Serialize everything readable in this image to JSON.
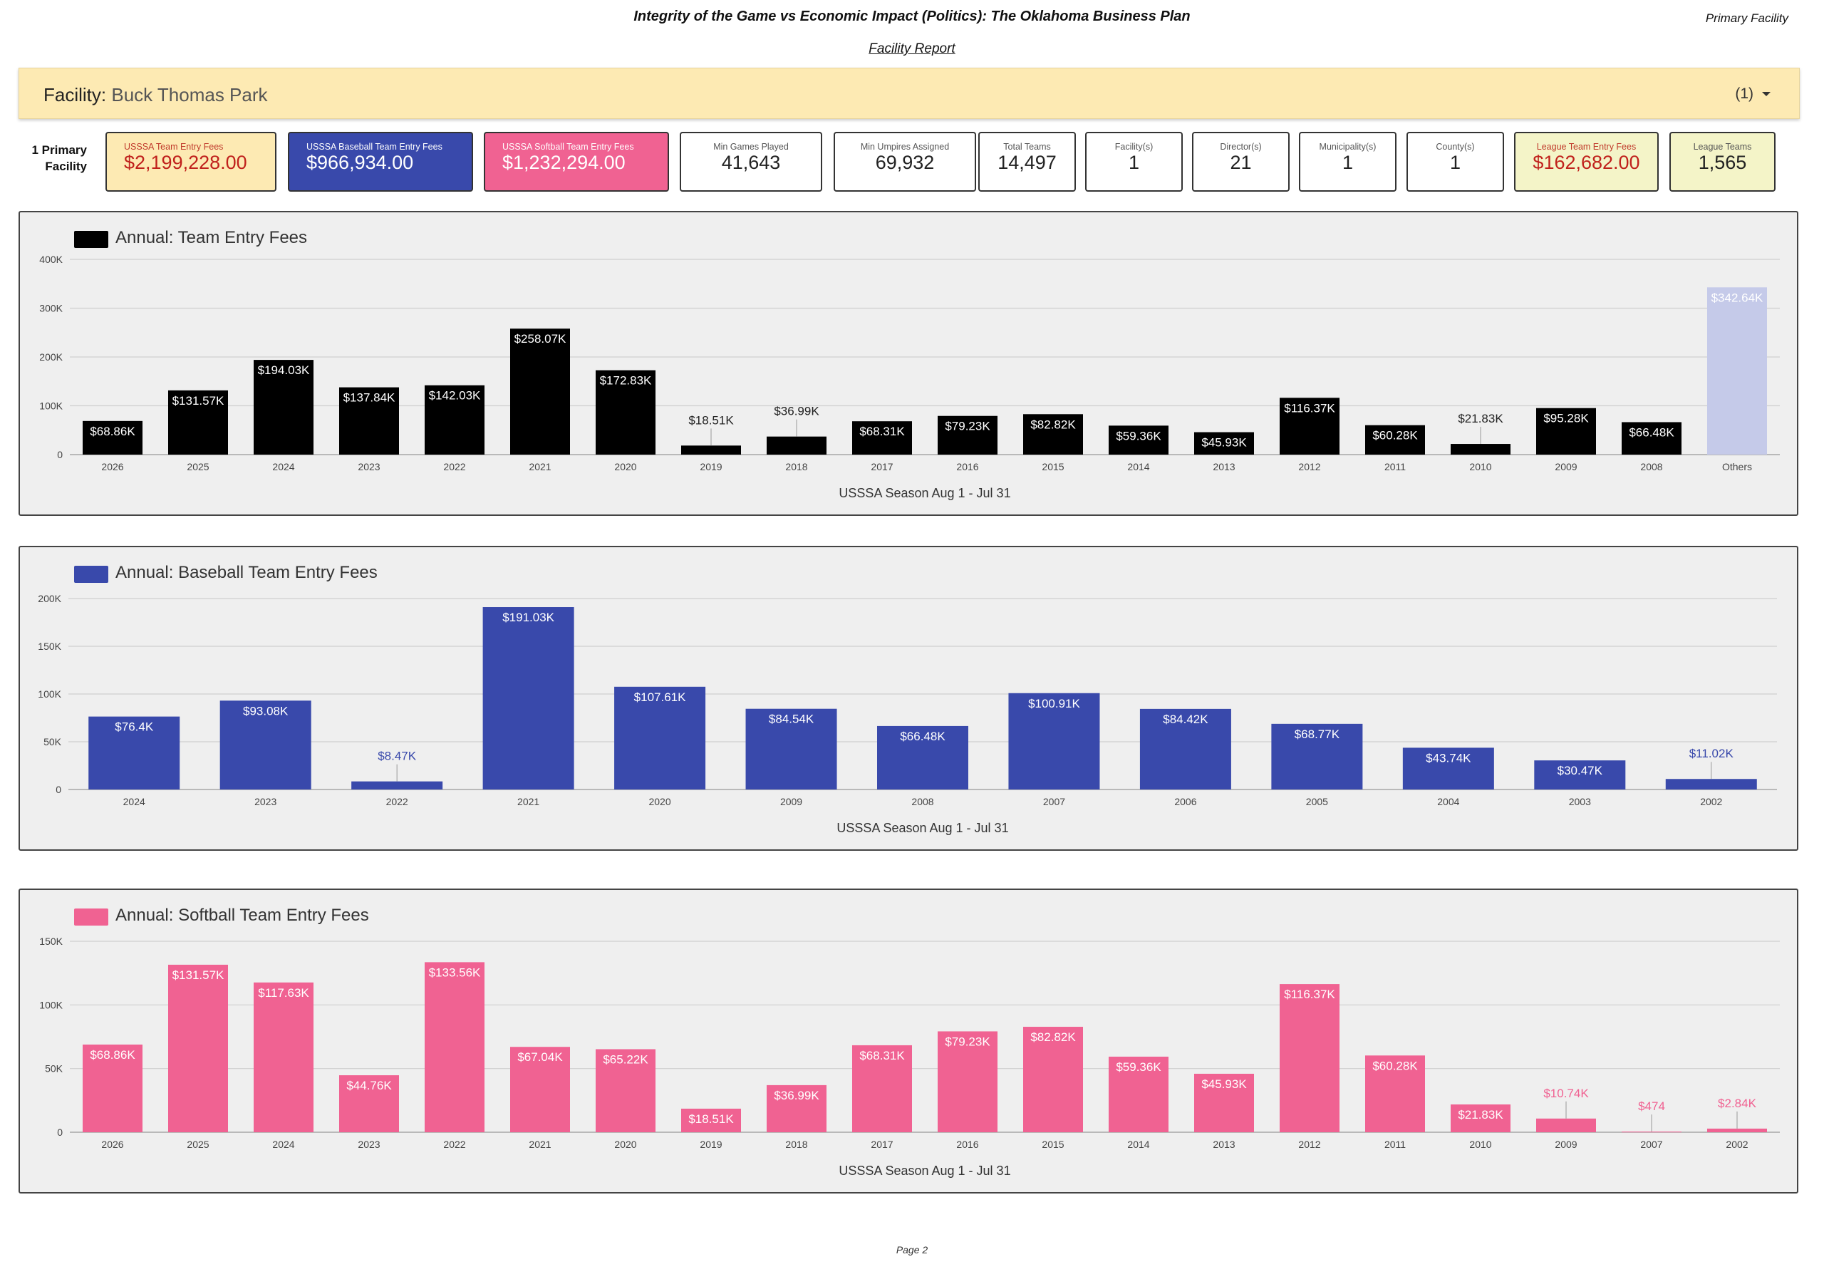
{
  "header": {
    "title": "Integrity of the Game vs Economic Impact (Politics): The Oklahoma Business Plan",
    "right_label": "Primary Facility",
    "subtitle": "Facility Report"
  },
  "facility": {
    "label": "Facility",
    "name": "Buck Thomas Park",
    "count": "(1)"
  },
  "row_label": "1 Primary Facility",
  "kpis": [
    {
      "label": "USSSA Team Entry Fees",
      "value": "$2,199,228.00",
      "bg": "#fdeab3",
      "label_color": "#c0392b",
      "value_color": "#c0211c"
    },
    {
      "label": "USSSA Baseball Team Entry Fees",
      "value": "$966,934.00",
      "bg": "#3949ab",
      "label_color": "#ffffff",
      "value_color": "#ffffff"
    },
    {
      "label": "USSSA Softball Team Entry Fees",
      "value": "$1,232,294.00",
      "bg": "#f06292",
      "label_color": "#ffffff",
      "value_color": "#ffffff"
    },
    {
      "label": "Min Games Played",
      "value": "41,643",
      "bg": "#ffffff",
      "label_color": "#555555",
      "value_color": "#222222"
    },
    {
      "label": "Min Umpires Assigned",
      "value": "69,932",
      "bg": "#ffffff",
      "label_color": "#555555",
      "value_color": "#222222"
    },
    {
      "label": "Total Teams",
      "value": "14,497",
      "bg": "#ffffff",
      "label_color": "#555555",
      "value_color": "#222222"
    },
    {
      "label": "Facility(s)",
      "value": "1",
      "bg": "#ffffff",
      "label_color": "#555555",
      "value_color": "#222222"
    },
    {
      "label": "Director(s)",
      "value": "21",
      "bg": "#ffffff",
      "label_color": "#555555",
      "value_color": "#222222"
    },
    {
      "label": "Municipality(s)",
      "value": "1",
      "bg": "#ffffff",
      "label_color": "#555555",
      "value_color": "#222222"
    },
    {
      "label": "County(s)",
      "value": "1",
      "bg": "#ffffff",
      "label_color": "#555555",
      "value_color": "#222222"
    },
    {
      "label": "League Team Entry Fees",
      "value": "$162,682.00",
      "bg": "#f4f4c8",
      "label_color": "#c0392b",
      "value_color": "#c0211c"
    },
    {
      "label": "League Teams",
      "value": "1,565",
      "bg": "#f4f4c8",
      "label_color": "#555555",
      "value_color": "#222222"
    }
  ],
  "chart_data": [
    {
      "type": "bar",
      "legend": "Annual: Team Entry Fees",
      "color": "#000000",
      "others_color": "#c5cae9",
      "xlabel": "USSSA Season Aug 1 - Jul 31",
      "ylabel": "",
      "ylim": [
        0,
        400000
      ],
      "yticks": [
        0,
        100000,
        200000,
        300000,
        400000
      ],
      "ytick_labels": [
        "0",
        "100K",
        "200K",
        "300K",
        "400K"
      ],
      "categories": [
        "2026",
        "2025",
        "2024",
        "2023",
        "2022",
        "2021",
        "2020",
        "2019",
        "2018",
        "2017",
        "2016",
        "2015",
        "2014",
        "2013",
        "2012",
        "2011",
        "2010",
        "2009",
        "2008",
        "Others"
      ],
      "values": [
        68860,
        131570,
        194030,
        137840,
        142030,
        258070,
        172830,
        18510,
        36990,
        68310,
        79230,
        82820,
        59360,
        45930,
        116370,
        60280,
        21830,
        95280,
        66480,
        342640
      ],
      "value_labels": [
        "$68.86K",
        "$131.57K",
        "$194.03K",
        "$137.84K",
        "$142.03K",
        "$258.07K",
        "$172.83K",
        "$18.51K",
        "$36.99K",
        "$68.31K",
        "$79.23K",
        "$82.82K",
        "$59.36K",
        "$45.93K",
        "$116.37K",
        "$60.28K",
        "$21.83K",
        "$95.28K",
        "$66.48K",
        "$342.64K"
      ],
      "grid": true
    },
    {
      "type": "bar",
      "legend": "Annual: Baseball Team Entry Fees",
      "color": "#3949ab",
      "xlabel": "USSSA Season Aug 1 - Jul 31",
      "ylabel": "",
      "ylim": [
        0,
        200000
      ],
      "yticks": [
        0,
        50000,
        100000,
        150000,
        200000
      ],
      "ytick_labels": [
        "0",
        "50K",
        "100K",
        "150K",
        "200K"
      ],
      "categories": [
        "2024",
        "2023",
        "2022",
        "2021",
        "2020",
        "2009",
        "2008",
        "2007",
        "2006",
        "2005",
        "2004",
        "2003",
        "2002"
      ],
      "values": [
        76400,
        93080,
        8470,
        191030,
        107610,
        84540,
        66480,
        100910,
        84420,
        68770,
        43740,
        30470,
        11020
      ],
      "value_labels": [
        "$76.4K",
        "$93.08K",
        "$8.47K",
        "$191.03K",
        "$107.61K",
        "$84.54K",
        "$66.48K",
        "$100.91K",
        "$84.42K",
        "$68.77K",
        "$43.74K",
        "$30.47K",
        "$11.02K"
      ],
      "grid": true
    },
    {
      "type": "bar",
      "legend": "Annual: Softball Team Entry Fees",
      "color": "#f06292",
      "xlabel": "USSSA Season Aug 1 - Jul 31",
      "ylabel": "",
      "ylim": [
        0,
        150000
      ],
      "yticks": [
        0,
        50000,
        100000,
        150000
      ],
      "ytick_labels": [
        "0",
        "50K",
        "100K",
        "150K"
      ],
      "categories": [
        "2026",
        "2025",
        "2024",
        "2023",
        "2022",
        "2021",
        "2020",
        "2019",
        "2018",
        "2017",
        "2016",
        "2015",
        "2014",
        "2013",
        "2012",
        "2011",
        "2010",
        "2009",
        "2007",
        "2002"
      ],
      "values": [
        68860,
        131570,
        117630,
        44760,
        133560,
        67040,
        65220,
        18510,
        36990,
        68310,
        79230,
        82820,
        59360,
        45930,
        116370,
        60280,
        21830,
        10740,
        474,
        2840
      ],
      "value_labels": [
        "$68.86K",
        "$131.57K",
        "$117.63K",
        "$44.76K",
        "$133.56K",
        "$67.04K",
        "$65.22K",
        "$18.51K",
        "$36.99K",
        "$68.31K",
        "$79.23K",
        "$82.82K",
        "$59.36K",
        "$45.93K",
        "$116.37K",
        "$60.28K",
        "$21.83K",
        "$10.74K",
        "$474",
        "$2.84K"
      ],
      "grid": true
    }
  ],
  "footer": "Page 2"
}
